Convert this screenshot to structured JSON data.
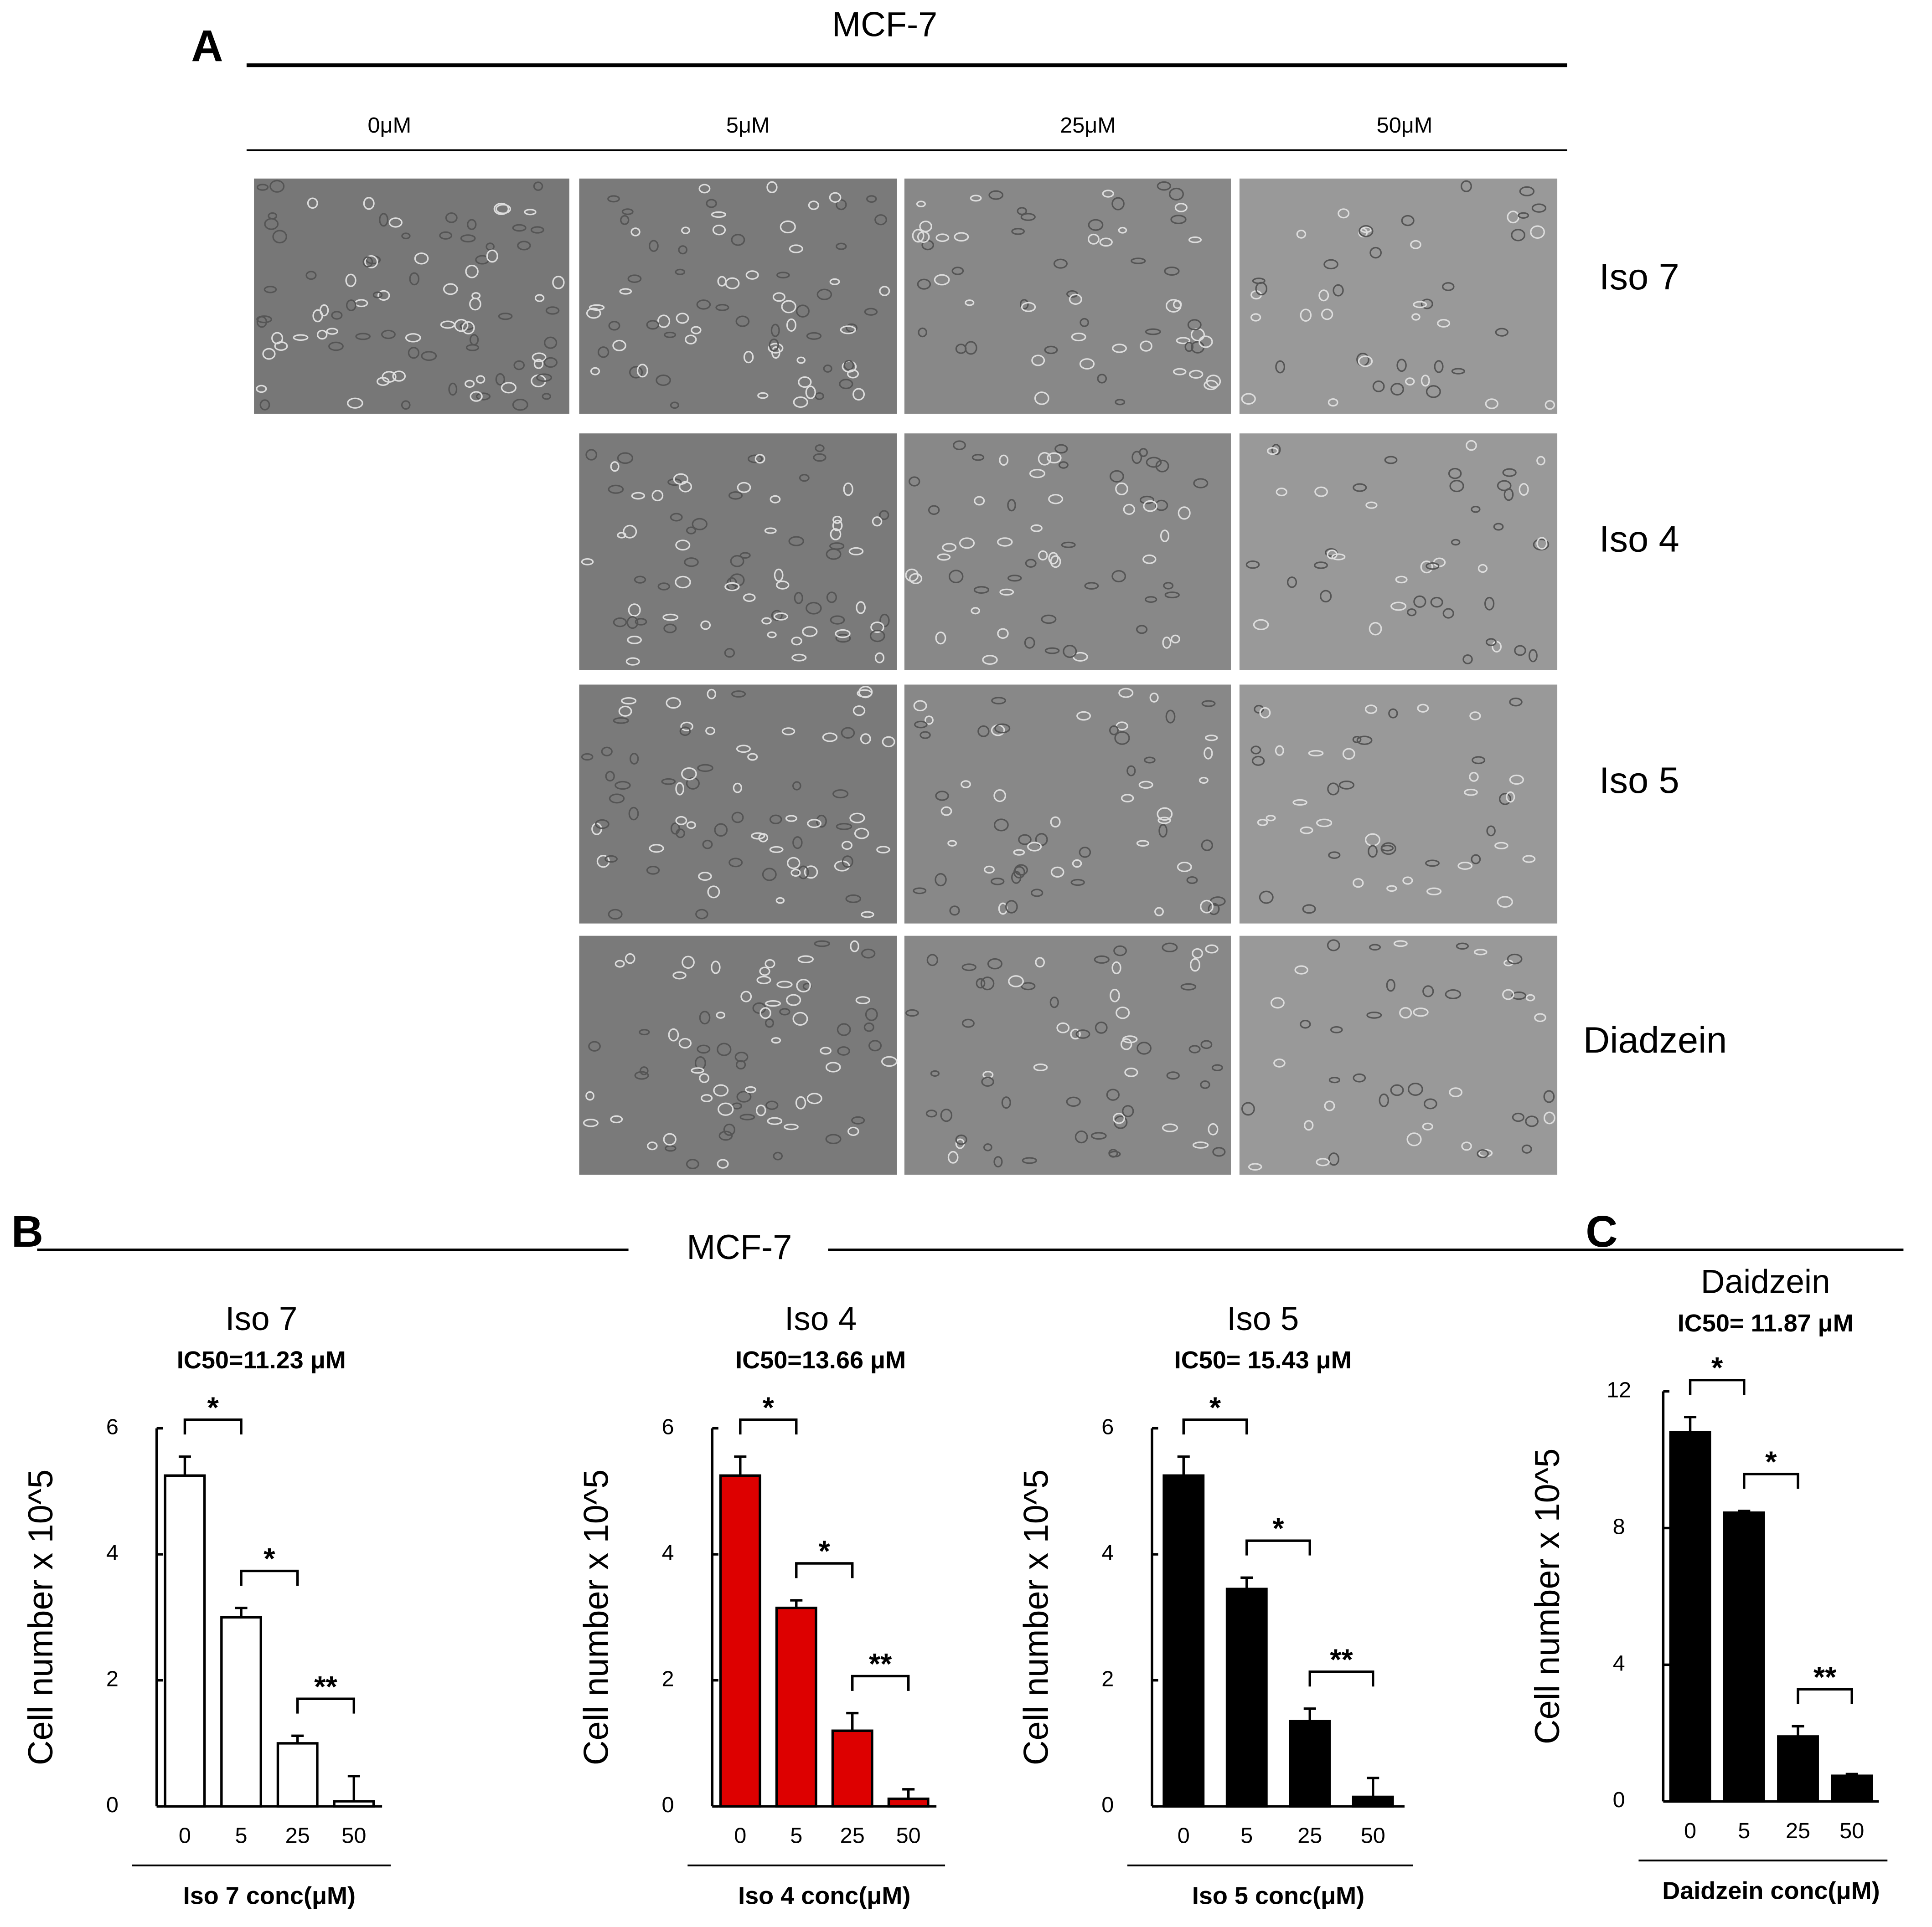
{
  "panel_a": {
    "letter": "A",
    "title": "MCF-7",
    "columns": [
      "0μM",
      "5μM",
      "25μM",
      "50μM"
    ],
    "rows": [
      "Iso 7",
      "Iso 4",
      "Iso 5",
      "Diadzein"
    ]
  },
  "panel_b": {
    "letter": "B",
    "title": "MCF-7"
  },
  "panel_c": {
    "letter": "C"
  },
  "chart_data": [
    {
      "type": "bar",
      "title": "Iso 7",
      "subtitle": "IC50=11.23 μM",
      "y_label": "Cell number x 10^5",
      "x_label": "Iso 7 conc(μM)",
      "categories": [
        "0",
        "5",
        "25",
        "50"
      ],
      "values": [
        5.25,
        3.0,
        1.0,
        0.08
      ],
      "errors": [
        0.3,
        0.15,
        0.12,
        0.4
      ],
      "color": "#ffffff",
      "ylim": [
        0,
        6
      ],
      "yticks": [
        0,
        2,
        4,
        6
      ],
      "annotations": [
        "*",
        "*",
        "**"
      ]
    },
    {
      "type": "bar",
      "title": "Iso 4",
      "subtitle": "IC50=13.66 μM",
      "y_label": "Cell number x 10^5",
      "x_label": "Iso 4 conc(μM)",
      "categories": [
        "0",
        "5",
        "25",
        "50"
      ],
      "values": [
        5.25,
        3.15,
        1.2,
        0.12
      ],
      "errors": [
        0.3,
        0.12,
        0.28,
        0.15
      ],
      "color": "#dd0000",
      "ylim": [
        0,
        6
      ],
      "yticks": [
        0,
        2,
        4,
        6
      ],
      "annotations": [
        "*",
        "*",
        "**"
      ]
    },
    {
      "type": "bar",
      "title": "Iso 5",
      "subtitle": "IC50= 15.43 μM",
      "y_label": "Cell number x 10^5",
      "x_label": "Iso 5 conc(μM)",
      "categories": [
        "0",
        "5",
        "25",
        "50"
      ],
      "values": [
        5.25,
        3.45,
        1.35,
        0.15
      ],
      "errors": [
        0.3,
        0.18,
        0.2,
        0.3
      ],
      "color": "#000000",
      "ylim": [
        0,
        6
      ],
      "yticks": [
        0,
        2,
        4,
        6
      ],
      "annotations": [
        "*",
        "*",
        "**"
      ]
    },
    {
      "type": "bar",
      "title": "Daidzein",
      "subtitle": "IC50= 11.87 μM",
      "y_label": "Cell number x 10^5",
      "x_label": "Daidzein conc(μM)",
      "categories": [
        "0",
        "5",
        "25",
        "50"
      ],
      "values": [
        10.8,
        8.45,
        1.9,
        0.75
      ],
      "errors": [
        0.45,
        0.05,
        0.3,
        0.05
      ],
      "color": "#000000",
      "ylim": [
        0,
        12
      ],
      "yticks": [
        0,
        4,
        8,
        12
      ],
      "annotations": [
        "*",
        "*",
        "**"
      ]
    }
  ]
}
